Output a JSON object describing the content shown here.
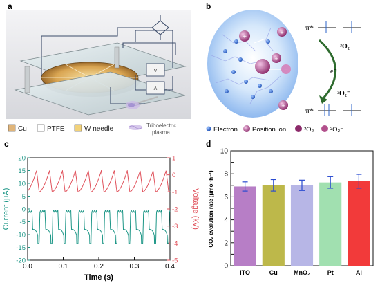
{
  "panel_a": {
    "letter": "a",
    "legend": [
      {
        "label": "Cu",
        "color": "#e0b57a"
      },
      {
        "label": "PTFE",
        "color": "#ffffff"
      },
      {
        "label": "W needle",
        "color": "#f2d27a"
      }
    ],
    "plasma_line1": "Triboelectric",
    "plasma_line2": "plasma"
  },
  "panel_b": {
    "letter": "b",
    "pi_star_top": "π*",
    "pi_star_bottom": "π*",
    "o2_triplet_label": "³O₂",
    "superoxide_label": "²O₂⁻",
    "electron_label": "e⁻",
    "legend": [
      {
        "label": "Electron",
        "color": "#2b63c9"
      },
      {
        "label": "Position  ion",
        "color": "#a63a86"
      },
      {
        "label": "³O₂",
        "color": "#8c2a6a"
      },
      {
        "label": "²O₂⁻",
        "color": "#b2508c"
      }
    ]
  },
  "panel_c": {
    "letter": "c",
    "chart_data": {
      "type": "line",
      "xlabel": "Time (s)",
      "ylabel_left": "Current (μA)",
      "ylabel_right": "Voltage (kV)",
      "xlim": [
        0.0,
        0.4
      ],
      "ylim_left": [
        -20,
        20
      ],
      "ylim_right": [
        -5,
        1
      ],
      "x_ticks": [
        "0.0",
        "0.1",
        "0.2",
        "0.3",
        "0.4"
      ],
      "y_left_ticks": [
        "20",
        "15",
        "10",
        "5",
        "0",
        "-5",
        "-10",
        "-15",
        "-20"
      ],
      "y_right_ticks": [
        "1",
        "0",
        "-1",
        "-2",
        "-3",
        "-4",
        "-5"
      ],
      "left_color": "#1a9585",
      "right_color": "#e0505a",
      "period_s": 0.0364,
      "series": [
        {
          "axis": "right",
          "color": "#e0505a",
          "low": -1.0,
          "peak": 0.25
        },
        {
          "axis": "left",
          "color": "#1a9585",
          "plateau_high": -1.0,
          "plateau_low": -8.0,
          "trough": -13.5
        }
      ]
    }
  },
  "panel_d": {
    "letter": "d",
    "chart_data": {
      "type": "bar",
      "ylabel": "CO₂ evolution rate (μmol·h⁻¹)",
      "categories": [
        "ITO",
        "Cu",
        "MnO₂",
        "Pt",
        "Al"
      ],
      "values": [
        6.9,
        7.0,
        7.0,
        7.25,
        7.35
      ],
      "errors": [
        0.4,
        0.5,
        0.45,
        0.5,
        0.6
      ],
      "colors": [
        "#b77ec6",
        "#bdb84a",
        "#b7b6e6",
        "#a1e0b0",
        "#f23a3a"
      ],
      "ylim": [
        0,
        10
      ]
    }
  }
}
